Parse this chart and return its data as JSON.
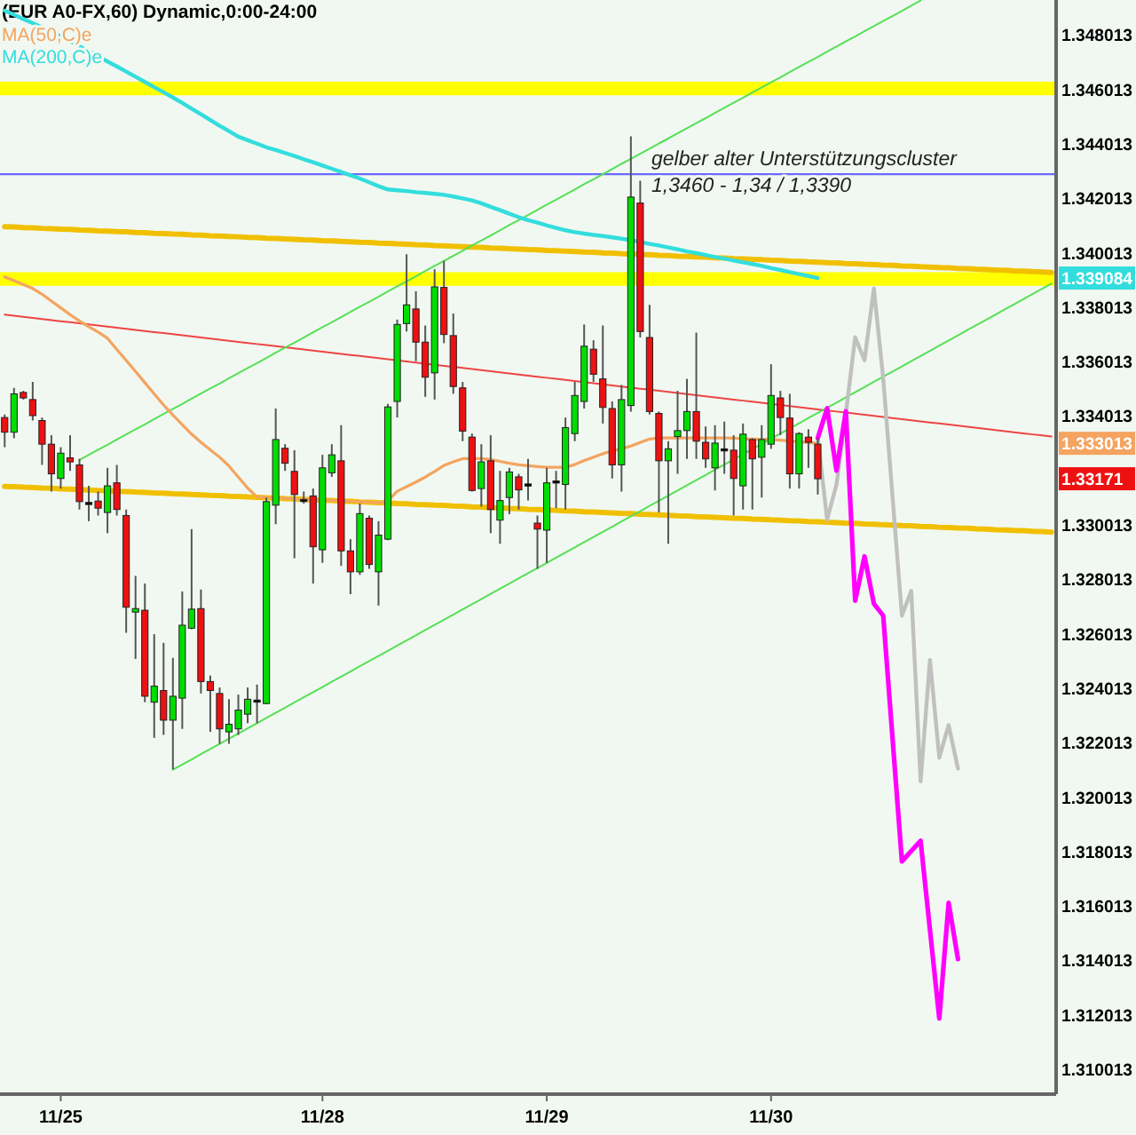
{
  "chart_data": {
    "type": "candlestick",
    "title": "(EUR A0-FX,60) Dynamic,0:00-24:00",
    "legend": "top left",
    "categories": [
      null,
      null,
      null,
      null,
      null,
      null,
      "11/25",
      null,
      null,
      null,
      null,
      null,
      null,
      null,
      null,
      null,
      null,
      null,
      null,
      null,
      null,
      null,
      null,
      null,
      null,
      null,
      null,
      null,
      null,
      null,
      null,
      null,
      null,
      null,
      "11/28",
      null,
      null,
      null,
      null,
      null,
      null,
      null,
      null,
      null,
      null,
      null,
      null,
      null,
      null,
      null,
      null,
      null,
      null,
      null,
      null,
      null,
      null,
      null,
      "11/29",
      null,
      null,
      null,
      null,
      null,
      null,
      null,
      null,
      null,
      null,
      null,
      null,
      null,
      null,
      null,
      null,
      null,
      null,
      null,
      null,
      null,
      null,
      null,
      "11/30",
      null,
      null,
      null,
      null,
      null,
      null,
      null,
      null,
      null,
      null,
      null,
      null,
      null,
      null,
      null,
      null,
      null,
      null,
      null,
      null,
      null,
      null,
      null,
      null,
      null,
      null,
      null,
      null,
      null,
      null
    ],
    "ohlc": [
      [
        1.33396,
        1.33407,
        1.33287,
        1.33342
      ],
      [
        1.33342,
        1.33505,
        1.3332,
        1.33483
      ],
      [
        1.33488,
        1.33494,
        1.33462,
        1.33468
      ],
      [
        1.33462,
        1.33527,
        1.33385,
        1.33403
      ],
      [
        1.33385,
        1.33396,
        1.33222,
        1.33298
      ],
      [
        1.33298,
        1.33331,
        1.33124,
        1.33189
      ],
      [
        1.33172,
        1.33287,
        1.33135,
        1.33265
      ],
      [
        1.33248,
        1.33331,
        1.332,
        1.33233
      ],
      [
        1.33222,
        1.33244,
        1.33058,
        1.33087
      ],
      [
        1.33084,
        1.33145,
        1.33015,
        1.3308
      ],
      [
        1.33089,
        1.33124,
        1.33036,
        1.33063
      ],
      [
        1.33047,
        1.33211,
        1.32971,
        1.33145
      ],
      [
        1.33156,
        1.33222,
        1.33036,
        1.33058
      ],
      [
        1.33036,
        1.33058,
        1.32605,
        1.32699
      ],
      [
        1.32681,
        1.32814,
        1.32509,
        1.32694
      ],
      [
        1.32688,
        1.32786,
        1.3235,
        1.32372
      ],
      [
        1.3235,
        1.326,
        1.32219,
        1.32409
      ],
      [
        1.32393,
        1.32568,
        1.3223,
        1.32284
      ],
      [
        1.32284,
        1.32513,
        1.32103,
        1.32372
      ],
      [
        1.32365,
        1.32757,
        1.32252,
        1.32633
      ],
      [
        1.32622,
        1.32986,
        1.32618,
        1.32692
      ],
      [
        1.32694,
        1.32764,
        1.32382,
        1.32426
      ],
      [
        1.32426,
        1.32448,
        1.32241,
        1.32393
      ],
      [
        1.32382,
        1.32404,
        1.32197,
        1.32252
      ],
      [
        1.32241,
        1.32361,
        1.32197,
        1.32269
      ],
      [
        1.32252,
        1.32378,
        1.3223,
        1.32321
      ],
      [
        1.32306,
        1.32404,
        1.32273,
        1.32361
      ],
      [
        1.32356,
        1.32415,
        1.32273,
        1.32358
      ],
      [
        1.32345,
        1.33102,
        1.32343,
        1.33087
      ],
      [
        1.33074,
        1.33429,
        1.33004,
        1.33315
      ],
      [
        1.33283,
        1.33298,
        1.332,
        1.33228
      ],
      [
        1.33198,
        1.33276,
        1.32879,
        1.33113
      ],
      [
        1.33095,
        1.33124,
        1.3308,
        1.33095
      ],
      [
        1.33108,
        1.33135,
        1.32786,
        1.32921
      ],
      [
        1.3291,
        1.33259,
        1.32862,
        1.33211
      ],
      [
        1.33193,
        1.33298,
        1.33178,
        1.33259
      ],
      [
        1.33237,
        1.33368,
        1.32851,
        1.32906
      ],
      [
        1.32906,
        1.32949,
        1.32747,
        1.32829
      ],
      [
        1.32829,
        1.3308,
        1.32818,
        1.33043
      ],
      [
        1.33026,
        1.33036,
        1.3284,
        1.32856
      ],
      [
        1.32829,
        1.33015,
        1.32705,
        1.32964
      ],
      [
        1.32949,
        1.33446,
        1.32945,
        1.33435
      ],
      [
        1.33455,
        1.33756,
        1.33396,
        1.33738
      ],
      [
        1.33741,
        1.33996,
        1.33712,
        1.3381
      ],
      [
        1.33795,
        1.3386,
        1.33603,
        1.33673
      ],
      [
        1.33673,
        1.33734,
        1.33472,
        1.33544
      ],
      [
        1.3356,
        1.33941,
        1.33462,
        1.33876
      ],
      [
        1.33874,
        1.33972,
        1.33669,
        1.33701
      ],
      [
        1.33697,
        1.33778,
        1.33483,
        1.3351
      ],
      [
        1.33505,
        1.33527,
        1.33309,
        1.33346
      ],
      [
        1.33324,
        1.33337,
        1.33124,
        1.33128
      ],
      [
        1.33135,
        1.33298,
        1.33069,
        1.33233
      ],
      [
        1.33237,
        1.33331,
        1.32971,
        1.33058
      ],
      [
        1.33019,
        1.332,
        1.32932,
        1.33091
      ],
      [
        1.33102,
        1.33211,
        1.33041,
        1.33196
      ],
      [
        1.33178,
        1.33189,
        1.33058,
        1.3313
      ],
      [
        1.33152,
        1.33244,
        1.33091,
        1.33152
      ],
      [
        1.33008,
        1.33036,
        1.3284,
        1.32986
      ],
      [
        1.32982,
        1.33211,
        1.32862,
        1.33156
      ],
      [
        1.33163,
        1.332,
        1.33063,
        1.33163
      ],
      [
        1.3315,
        1.33396,
        1.33058,
        1.33359
      ],
      [
        1.33337,
        1.33527,
        1.33309,
        1.33477
      ],
      [
        1.33455,
        1.33738,
        1.33429,
        1.33658
      ],
      [
        1.33647,
        1.3368,
        1.33527,
        1.33555
      ],
      [
        1.33538,
        1.33734,
        1.33374,
        1.33433
      ],
      [
        1.33429,
        1.33455,
        1.33172,
        1.33222
      ],
      [
        1.33222,
        1.33516,
        1.33124,
        1.33462
      ],
      [
        1.3344,
        1.34429,
        1.33418,
        1.34206
      ],
      [
        1.34184,
        1.34266,
        1.3369,
        1.33712
      ],
      [
        1.3369,
        1.3381,
        1.33407,
        1.33418
      ],
      [
        1.33411,
        1.33418,
        1.33047,
        1.33237
      ],
      [
        1.33237,
        1.33309,
        1.32932,
        1.33281
      ],
      [
        1.33326,
        1.33494,
        1.33189,
        1.33348
      ],
      [
        1.33348,
        1.33538,
        1.33244,
        1.33418
      ],
      [
        1.33418,
        1.33708,
        1.33244,
        1.33309
      ],
      [
        1.33305,
        1.33363,
        1.33211,
        1.33244
      ],
      [
        1.33211,
        1.33368,
        1.33128,
        1.33302
      ],
      [
        1.33281,
        1.33381,
        1.33189,
        1.33281
      ],
      [
        1.33276,
        1.33331,
        1.33036,
        1.33172
      ],
      [
        1.33145,
        1.33374,
        1.33058,
        1.33335
      ],
      [
        1.33315,
        1.3332,
        1.33058,
        1.33244
      ],
      [
        1.3325,
        1.33368,
        1.33102,
        1.33315
      ],
      [
        1.33298,
        1.33592,
        1.33281,
        1.33477
      ],
      [
        1.33468,
        1.33494,
        1.33331,
        1.33396
      ],
      [
        1.33394,
        1.33483,
        1.33135,
        1.33189
      ],
      [
        1.33189,
        1.33342,
        1.33135,
        1.33337
      ],
      [
        1.33324,
        1.33353,
        1.33211,
        1.33305
      ],
      [
        1.33298,
        1.3332,
        1.33113,
        1.33171
      ],
      null,
      null,
      null,
      null,
      null,
      null,
      null,
      null,
      null,
      null,
      null,
      null,
      null,
      null,
      null,
      null,
      null,
      null,
      null,
      null,
      null,
      null,
      null,
      null,
      null
    ],
    "colors": [
      "#ee1111",
      "#00dd00",
      "#ee1111",
      "#ee1111",
      "#ee1111",
      "#ee1111",
      "#00dd00",
      "#ee1111",
      "#ee1111",
      "#000000",
      "#ee1111",
      "#00dd00",
      "#ee1111",
      "#ee1111",
      "#00dd00",
      "#ee1111",
      "#00dd00",
      "#ee1111",
      "#00dd00",
      "#00dd00",
      "#00dd00",
      "#ee1111",
      "#ee1111",
      "#ee1111",
      "#00dd00",
      "#00dd00",
      "#00dd00",
      "#000000",
      "#00dd00",
      "#00dd00",
      "#ee1111",
      "#ee1111",
      "#000000",
      "#ee1111",
      "#00dd00",
      "#00dd00",
      "#ee1111",
      "#ee1111",
      "#00dd00",
      "#ee1111",
      "#00dd00",
      "#00dd00",
      "#00dd00",
      "#00dd00",
      "#ee1111",
      "#ee1111",
      "#00dd00",
      "#ee1111",
      "#ee1111",
      "#ee1111",
      "#ee1111",
      "#00dd00",
      "#ee1111",
      "#00dd00",
      "#00dd00",
      "#ee1111",
      "#000000",
      "#ee1111",
      "#00dd00",
      "#000000",
      "#00dd00",
      "#00dd00",
      "#00dd00",
      "#ee1111",
      "#ee1111",
      "#ee1111",
      "#00dd00",
      "#00dd00",
      "#ee1111",
      "#ee1111",
      "#ee1111",
      "#00dd00",
      "#00dd00",
      "#00dd00",
      "#ee1111",
      "#ee1111",
      "#00dd00",
      "#000000",
      "#ee1111",
      "#00dd00",
      "#ee1111",
      "#00dd00",
      "#00dd00",
      "#ee1111",
      "#ee1111",
      "#00dd00",
      "#ee1111",
      "#ee1111",
      null,
      null,
      null,
      null,
      null,
      null,
      null,
      null,
      null,
      null,
      null,
      null,
      null,
      null,
      null,
      null,
      null,
      null,
      null,
      null,
      null,
      null,
      null,
      null,
      null
    ],
    "series": [
      {
        "type": "line",
        "color": "#f0c000",
        "values": [
          1.34097,
          1.34096,
          1.34094,
          1.34093,
          1.34091,
          1.3409,
          1.34088,
          1.34087,
          1.34085,
          1.34084,
          1.34082,
          1.34081,
          1.34079,
          1.34078,
          1.34076,
          1.34075,
          1.34073,
          1.34072,
          1.3407,
          1.34069,
          1.34067,
          1.34066,
          1.34064,
          1.34063,
          1.34061,
          1.3406,
          1.34058,
          1.34057,
          1.34055,
          1.34054,
          1.34052,
          1.34051,
          1.34049,
          1.34048,
          1.34046,
          1.34045,
          1.34043,
          1.34042,
          1.3404,
          1.34039,
          1.34037,
          1.34036,
          1.34034,
          1.34033,
          1.34031,
          1.3403,
          1.34028,
          1.34027,
          1.34025,
          1.34024,
          1.34022,
          1.34021,
          1.34019,
          1.34018,
          1.34016,
          1.34015,
          1.34013,
          1.34012,
          1.3401,
          1.34009,
          1.34007,
          1.34006,
          1.34004,
          1.34003,
          1.34001,
          1.34,
          1.33998,
          1.33997,
          1.33995,
          1.33994,
          1.33992,
          1.33991,
          1.33989,
          1.33988,
          1.33986,
          1.33985,
          1.33983,
          1.33982,
          1.3398,
          1.33979,
          1.33977,
          1.33976,
          1.33974,
          1.33973,
          1.33971,
          1.3397,
          1.33968,
          1.33967,
          1.33965,
          1.33964,
          1.33962,
          1.33961,
          1.33959,
          1.33958,
          1.33956,
          1.33955,
          1.33953,
          1.33952,
          1.3395,
          1.33949,
          1.33947,
          1.33946,
          1.33944,
          1.33943,
          1.33941,
          1.3394,
          1.33938,
          1.33937,
          1.33935,
          1.33934,
          1.33932,
          1.33931,
          1.33929
        ]
      },
      {
        "type": "line",
        "color": "#f0c000",
        "values": [
          1.33143,
          1.33142,
          1.3314,
          1.33139,
          1.33137,
          1.33136,
          1.33134,
          1.33133,
          1.33131,
          1.3313,
          1.33128,
          1.33127,
          1.33125,
          1.33124,
          1.33122,
          1.33121,
          1.33119,
          1.33118,
          1.33116,
          1.33115,
          1.33113,
          1.33112,
          1.3311,
          1.33109,
          1.33107,
          1.33106,
          1.33104,
          1.33103,
          1.33101,
          1.331,
          1.33098,
          1.33097,
          1.33095,
          1.33094,
          1.33092,
          1.33091,
          1.33089,
          1.33088,
          1.33086,
          1.33085,
          1.33083,
          1.33082,
          1.3308,
          1.33079,
          1.33077,
          1.33076,
          1.33074,
          1.33073,
          1.33071,
          1.3307,
          1.33068,
          1.33067,
          1.33065,
          1.33064,
          1.33062,
          1.33061,
          1.33059,
          1.33058,
          1.33056,
          1.33055,
          1.33053,
          1.33052,
          1.3305,
          1.33049,
          1.33047,
          1.33046,
          1.33044,
          1.33043,
          1.33041,
          1.3304,
          1.33038,
          1.33037,
          1.33035,
          1.33034,
          1.33032,
          1.33031,
          1.33029,
          1.33028,
          1.33026,
          1.33025,
          1.33023,
          1.33022,
          1.3302,
          1.33019,
          1.33017,
          1.33016,
          1.33014,
          1.33013,
          1.33011,
          1.3301,
          1.33008,
          1.33007,
          1.33005,
          1.33004,
          1.33002,
          1.33001,
          1.32999,
          1.32998,
          1.32996,
          1.32995,
          1.32993,
          1.32992,
          1.3299,
          1.32989,
          1.32987,
          1.32986,
          1.32984,
          1.32983,
          1.32981,
          1.3298,
          1.32978,
          1.32977,
          1.32975
        ]
      },
      {
        "type": "line",
        "color": "#ee4444",
        "values": [
          1.33774,
          1.3377,
          1.33766,
          1.33762,
          1.33758,
          1.33754,
          1.3375,
          1.33746,
          1.33742,
          1.33738,
          1.33734,
          1.3373,
          1.33726,
          1.33722,
          1.33718,
          1.33714,
          1.3371,
          1.33706,
          1.33702,
          1.33698,
          1.33694,
          1.3369,
          1.33686,
          1.33682,
          1.33678,
          1.33674,
          1.3367,
          1.33666,
          1.33662,
          1.33658,
          1.33654,
          1.3365,
          1.33646,
          1.33642,
          1.33638,
          1.33634,
          1.3363,
          1.33626,
          1.33622,
          1.33618,
          1.33614,
          1.3361,
          1.33606,
          1.33602,
          1.33598,
          1.33594,
          1.3359,
          1.33586,
          1.33582,
          1.33578,
          1.33574,
          1.3357,
          1.33566,
          1.33562,
          1.33558,
          1.33554,
          1.3355,
          1.33546,
          1.33542,
          1.33538,
          1.33534,
          1.3353,
          1.33526,
          1.33522,
          1.33518,
          1.33514,
          1.3351,
          1.33506,
          1.33502,
          1.33498,
          1.33494,
          1.3349,
          1.33486,
          1.33482,
          1.33478,
          1.33474,
          1.3347,
          1.33466,
          1.33462,
          1.33458,
          1.33454,
          1.3345,
          1.33446,
          1.33442,
          1.33438,
          1.33434,
          1.3343,
          1.33426,
          1.33422,
          1.33418,
          1.33414,
          1.3341,
          1.33406,
          1.33402,
          1.33398,
          1.33394,
          1.3339,
          1.33386,
          1.33382,
          1.33378,
          1.33374,
          1.3337,
          1.33366,
          1.33362,
          1.33358,
          1.33354,
          1.3335,
          1.33346,
          1.33342,
          1.33338,
          1.33334,
          1.3333,
          1.33326
        ]
      },
      {
        "type": "line",
        "color": "#55e055",
        "values": [
          null,
          null,
          null,
          null,
          null,
          null,
          null,
          null,
          1.3324,
          1.33259,
          1.33278,
          1.33296,
          1.33315,
          1.33334,
          1.33353,
          1.33371,
          1.3339,
          1.33409,
          1.33428,
          1.33446,
          1.33465,
          1.33484,
          1.33503,
          1.33521,
          1.3354,
          1.33559,
          1.33578,
          1.33596,
          1.33615,
          1.33634,
          1.33653,
          1.33671,
          1.3369,
          1.33709,
          1.33728,
          1.33746,
          1.33765,
          1.33784,
          1.33803,
          1.33821,
          1.3384,
          1.33859,
          1.33878,
          1.33896,
          1.33915,
          1.33934,
          1.33953,
          1.33971,
          1.3399,
          1.34009,
          1.34028,
          1.34046,
          1.34065,
          1.34084,
          1.34103,
          1.34121,
          1.3414,
          1.34159,
          1.34178,
          1.34196,
          1.34215,
          1.34234,
          1.34253,
          1.34271,
          1.3429,
          1.34309,
          1.34328,
          1.34346,
          1.34365,
          1.34384,
          1.34403,
          1.34421,
          1.3444,
          1.34459,
          1.34478,
          1.34496,
          1.34515,
          1.34534,
          1.34553,
          1.34571,
          1.3459,
          1.34609,
          1.34628,
          1.34646,
          1.34665,
          1.34684,
          1.34703,
          1.34721,
          1.3474,
          1.34759,
          1.34778,
          1.34796,
          1.34815,
          1.34834,
          1.34853,
          1.34871,
          1.3489,
          1.34909,
          1.34928,
          null,
          null,
          null,
          null,
          null,
          null,
          null,
          null,
          null,
          null,
          null,
          null,
          null,
          null
        ]
      },
      {
        "type": "line",
        "color": "#55e055",
        "values": [
          null,
          null,
          null,
          null,
          null,
          null,
          null,
          null,
          null,
          null,
          null,
          null,
          null,
          null,
          null,
          null,
          null,
          null,
          1.32102,
          1.32121,
          1.3214,
          1.32159,
          1.32178,
          1.32197,
          1.32216,
          1.32235,
          1.32254,
          1.32273,
          1.32292,
          1.32311,
          1.3233,
          1.32349,
          1.32368,
          1.32387,
          1.32406,
          1.32425,
          1.32444,
          1.32463,
          1.32482,
          1.32501,
          1.3252,
          1.32539,
          1.32558,
          1.32577,
          1.32596,
          1.32615,
          1.32634,
          1.32653,
          1.32672,
          1.32691,
          1.3271,
          1.32729,
          1.32748,
          1.32767,
          1.32786,
          1.32805,
          1.32824,
          1.32843,
          1.32862,
          1.32881,
          1.329,
          1.32919,
          1.32938,
          1.32957,
          1.32976,
          1.32995,
          1.33014,
          1.33033,
          1.33052,
          1.33071,
          1.3309,
          1.33109,
          1.33128,
          1.33147,
          1.33166,
          1.33185,
          1.33204,
          1.33223,
          1.33242,
          1.33261,
          1.3328,
          1.33299,
          1.33318,
          1.33337,
          1.33356,
          1.33375,
          1.33394,
          1.33413,
          1.33432,
          1.33451,
          1.3347,
          1.33489,
          1.33508,
          1.33527,
          1.33546,
          1.33565,
          1.33584,
          1.33603,
          1.33622,
          1.33641,
          1.3366,
          1.33679,
          1.33698,
          1.33717,
          1.33736,
          1.33755,
          1.33774,
          1.33793,
          1.33812,
          1.33831,
          1.3385,
          1.33869,
          1.33888
        ]
      },
      {
        "name": "MA(50,C)e",
        "type": "line",
        "color": "#f4a460",
        "values": [
          1.33913,
          1.33899,
          1.33884,
          1.3387,
          1.33849,
          1.33824,
          1.33799,
          1.33774,
          1.33751,
          1.3373,
          1.3371,
          1.33687,
          1.33646,
          1.33606,
          1.33565,
          1.33524,
          1.33483,
          1.33442,
          1.33405,
          1.3337,
          1.33335,
          1.33305,
          1.33277,
          1.3325,
          1.33218,
          1.33177,
          1.33137,
          1.33104,
          1.33102,
          1.33101,
          1.33099,
          1.33097,
          1.33096,
          1.33095,
          1.33093,
          1.33092,
          1.3309,
          1.33088,
          1.33087,
          1.33085,
          1.33083,
          1.33089,
          1.33125,
          1.33142,
          1.33159,
          1.33177,
          1.33198,
          1.3322,
          1.33233,
          1.33245,
          1.33245,
          1.33245,
          1.33242,
          1.33235,
          1.33228,
          1.33222,
          1.33219,
          1.33216,
          1.33213,
          1.33213,
          1.33213,
          1.33223,
          1.33238,
          1.3325,
          1.33263,
          1.33273,
          1.33281,
          1.33291,
          1.33304,
          1.33317,
          1.33321,
          1.33321,
          1.33321,
          1.33321,
          1.33321,
          1.33321,
          1.33321,
          1.33321,
          1.3332,
          1.33318,
          1.33317,
          1.33316,
          1.33315,
          1.33313,
          1.3331,
          1.33307,
          1.33304,
          1.333013,
          null,
          null,
          null,
          null,
          null,
          null,
          null,
          null,
          null,
          null,
          null,
          null,
          null,
          null,
          null,
          null,
          null,
          null,
          null,
          null,
          null,
          null,
          null,
          null,
          null
        ]
      },
      {
        "name": "MA(200,C)e",
        "type": "line",
        "color": "#33dddd",
        "values": [
          1.34891,
          1.34876,
          1.3486,
          1.34845,
          1.34829,
          1.34813,
          1.34797,
          1.34779,
          1.3476,
          1.34741,
          1.34723,
          1.34704,
          1.34686,
          1.34667,
          1.34648,
          1.34629,
          1.3461,
          1.34591,
          1.34572,
          1.34552,
          1.34531,
          1.3451,
          1.34489,
          1.34468,
          1.34448,
          1.34428,
          1.34415,
          1.34402,
          1.34389,
          1.34379,
          1.34368,
          1.34357,
          1.34345,
          1.34334,
          1.34322,
          1.3431,
          1.34298,
          1.34286,
          1.34274,
          1.3426,
          1.34246,
          1.34234,
          1.34231,
          1.34228,
          1.34224,
          1.34221,
          1.34218,
          1.34214,
          1.34208,
          1.34201,
          1.34194,
          1.34183,
          1.3417,
          1.34158,
          1.34145,
          1.34132,
          1.34121,
          1.34112,
          1.34102,
          1.34093,
          1.34084,
          1.34077,
          1.34072,
          1.34067,
          1.34063,
          1.34058,
          1.34053,
          1.34048,
          1.34041,
          1.34034,
          1.34028,
          1.34021,
          1.34014,
          1.34006,
          1.34,
          1.33993,
          1.33986,
          1.3398,
          1.33973,
          1.33966,
          1.3396,
          1.33953,
          1.33945,
          1.33938,
          1.3393,
          1.33923,
          1.33916,
          1.339084,
          null,
          null,
          null,
          null,
          null,
          null,
          null,
          null,
          null,
          null,
          null,
          null,
          null,
          null,
          null,
          null,
          null,
          null,
          null,
          null,
          null,
          null,
          null,
          null,
          null
        ]
      },
      {
        "type": "line",
        "color": "#c0c0c0",
        "values": [
          null,
          null,
          null,
          null,
          null,
          null,
          null,
          null,
          null,
          null,
          null,
          null,
          null,
          null,
          null,
          null,
          null,
          null,
          null,
          null,
          null,
          null,
          null,
          null,
          null,
          null,
          null,
          null,
          null,
          null,
          null,
          null,
          null,
          null,
          null,
          null,
          null,
          null,
          null,
          null,
          null,
          null,
          null,
          null,
          null,
          null,
          null,
          null,
          null,
          null,
          null,
          null,
          null,
          null,
          null,
          null,
          null,
          null,
          null,
          null,
          null,
          null,
          null,
          null,
          null,
          null,
          null,
          null,
          null,
          null,
          null,
          null,
          null,
          null,
          null,
          null,
          null,
          null,
          null,
          null,
          null,
          null,
          null,
          null,
          null,
          null,
          null,
          1.33321,
          1.33021,
          1.3315,
          1.33409,
          1.33691,
          1.33606,
          1.3387,
          1.33539,
          1.33104,
          1.32668,
          1.32759,
          1.32059,
          1.32505,
          1.32146,
          1.32266,
          1.32106,
          null,
          null,
          null,
          null,
          null,
          null,
          null,
          null,
          null,
          null
        ]
      },
      {
        "type": "line",
        "color": "#ff00ff",
        "values": [
          null,
          null,
          null,
          null,
          null,
          null,
          null,
          null,
          null,
          null,
          null,
          null,
          null,
          null,
          null,
          null,
          null,
          null,
          null,
          null,
          null,
          null,
          null,
          null,
          null,
          null,
          null,
          null,
          null,
          null,
          null,
          null,
          null,
          null,
          null,
          null,
          null,
          null,
          null,
          null,
          null,
          null,
          null,
          null,
          null,
          null,
          null,
          null,
          null,
          null,
          null,
          null,
          null,
          null,
          null,
          null,
          null,
          null,
          null,
          null,
          null,
          null,
          null,
          null,
          null,
          null,
          null,
          null,
          null,
          null,
          null,
          null,
          null,
          null,
          null,
          null,
          null,
          null,
          null,
          null,
          null,
          null,
          null,
          null,
          null,
          null,
          null,
          1.33321,
          1.3343,
          1.33201,
          1.33419,
          1.32723,
          1.32886,
          1.32712,
          1.32668,
          1.32216,
          1.31765,
          1.31803,
          1.31841,
          1.31514,
          1.31188,
          1.31613,
          1.31406,
          null,
          null,
          null,
          null,
          null,
          null,
          null,
          null,
          null,
          null
        ]
      }
    ],
    "ylim": [
      1.3091,
      1.3493
    ],
    "yticks": [
      1.348013,
      1.346013,
      1.344013,
      1.342013,
      1.340013,
      1.339084,
      1.338013,
      1.336013,
      1.334013,
      1.333013,
      1.33171,
      1.330013,
      1.328013,
      1.326013,
      1.324013,
      1.322013,
      1.320013,
      1.318013,
      1.316013,
      1.314013,
      1.312013,
      1.310013
    ],
    "bands": [
      {
        "axis": "y",
        "from": 1.3458,
        "to": 1.3463,
        "color": "#ffff00"
      },
      {
        "axis": "y",
        "from": 1.3388,
        "to": 1.3393,
        "color": "#ffff00"
      }
    ],
    "ref_lines": [
      {
        "axis": "y",
        "value": 1.3429,
        "color": "#6a6aff"
      }
    ],
    "annotations": [
      "gelber alter Unterstützungscluster",
      "1,3460 - 1,34 / 1,3390"
    ]
  }
}
